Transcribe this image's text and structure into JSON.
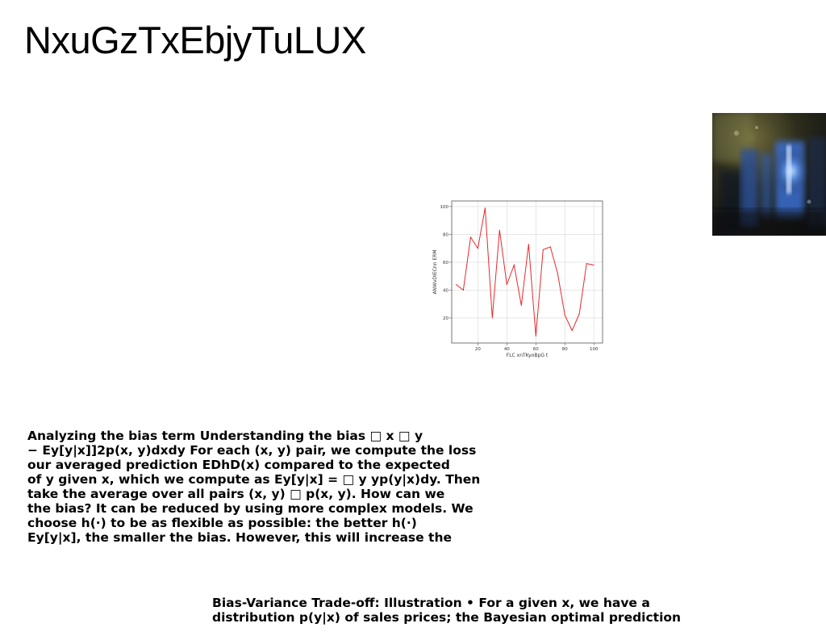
{
  "title": "NxuGzTxEbjyTuLUX",
  "photo": {
    "icon": "blurry-blue-light-photo"
  },
  "chart_data": {
    "type": "line",
    "title": "",
    "xlabel": "FLC xnTKyoBpG t",
    "ylabel": "ANWvDIECnn ERM",
    "xlim": [
      2,
      106
    ],
    "ylim": [
      2,
      104
    ],
    "xticks": [
      20,
      40,
      60,
      80,
      100
    ],
    "yticks": [
      20,
      40,
      60,
      80,
      100
    ],
    "grid": true,
    "legend": "none",
    "line_color": "#e8282b",
    "x": [
      5,
      10,
      15,
      20,
      25,
      30,
      35,
      40,
      45,
      50,
      55,
      60,
      65,
      70,
      75,
      80,
      85,
      90,
      95,
      100
    ],
    "y": [
      44,
      40,
      78,
      70,
      99,
      20,
      83,
      44,
      58,
      29,
      73,
      7,
      69,
      71,
      52,
      22,
      11,
      23,
      59,
      58
    ]
  },
  "paragraph1": {
    "lines": [
      "Analyzing the bias term Understanding the bias □ x □ y",
      "− Ey[y|x]]2p(x, y)dxdy For each (x, y) pair, we compute the loss",
      "our averaged prediction EDhD(x) compared to the expected",
      "of y given x, which we compute as Ey[y|x] = □ y yp(y|x)dy. Then",
      "take the average over all pairs (x, y) □ p(x, y). How can we",
      "the bias? It can be reduced by using more complex models. We",
      "choose h(·) to be as flexible as possible: the better h(·)",
      "Ey[y|x], the smaller the bias. However, this will increase the"
    ]
  },
  "paragraph2": {
    "lines": [
      "Bias-Variance Trade-off: Illustration • For a given x, we have a",
      "distribution p(y|x) of sales prices; the Bayesian optimal prediction"
    ]
  }
}
